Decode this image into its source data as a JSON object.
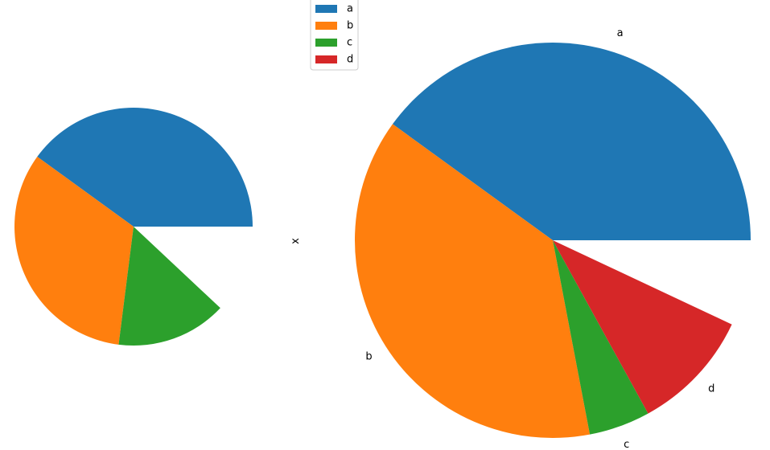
{
  "chart_data": [
    {
      "type": "pie",
      "categories": [
        "a",
        "b",
        "c",
        "d"
      ],
      "values": [
        0.4,
        0.33,
        0.15,
        0.0
      ],
      "colors": [
        "#1f77b4",
        "#ff7f0e",
        "#2ca02c",
        "#d62728"
      ],
      "start_angle_deg": 0,
      "direction": "counterclockwise",
      "show_labels": false,
      "ylabel": "x",
      "legend": {
        "entries": [
          "a",
          "b",
          "c",
          "d"
        ],
        "placement": "upper-right"
      }
    },
    {
      "type": "pie",
      "categories": [
        "a",
        "b",
        "c",
        "d"
      ],
      "values": [
        0.4,
        0.38,
        0.05,
        0.1
      ],
      "colors": [
        "#1f77b4",
        "#ff7f0e",
        "#2ca02c",
        "#d62728"
      ],
      "start_angle_deg": 0,
      "direction": "counterclockwise",
      "show_labels": true,
      "ylabel": ""
    }
  ]
}
